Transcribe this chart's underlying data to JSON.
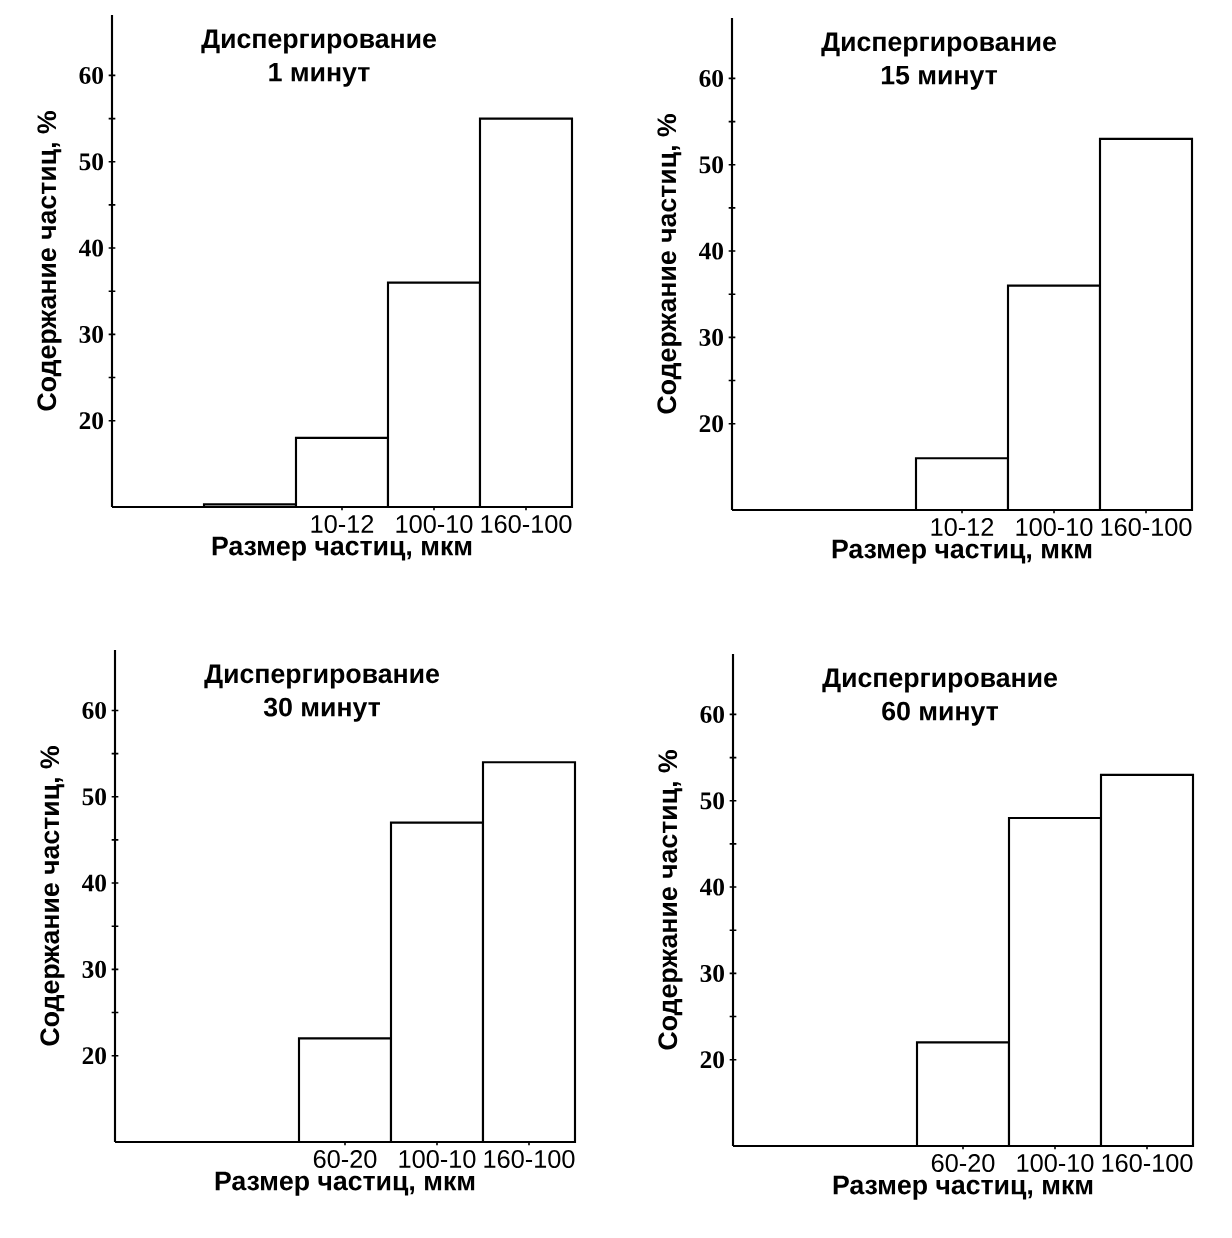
{
  "chart_data": [
    {
      "type": "bar",
      "title": "Диспергирование",
      "subtitle": "1 минут",
      "xlabel": "Размер частиц, мкм",
      "ylabel": "Содержание частиц, %",
      "categories": [
        null,
        null,
        "10-12",
        "100-10",
        "160-100"
      ],
      "values": [
        null,
        10.3,
        18,
        36,
        55
      ],
      "color": "#000000",
      "ylim": [
        10,
        67
      ],
      "yticks": [
        20,
        30,
        40,
        50,
        60
      ],
      "grid": false
    },
    {
      "type": "bar",
      "title": "Диспергирование",
      "subtitle": "15 минут",
      "xlabel": "Размер частиц, мкм",
      "ylabel": "Содержание частиц, %",
      "categories": [
        null,
        null,
        "10-12",
        "100-10",
        "160-100"
      ],
      "values": [
        null,
        null,
        16,
        36,
        53
      ],
      "color": "#000000",
      "ylim": [
        10,
        67
      ],
      "yticks": [
        20,
        30,
        40,
        50,
        60
      ],
      "grid": false
    },
    {
      "type": "bar",
      "title": "Диспергирование",
      "subtitle": "30 минут",
      "xlabel": "Размер частиц, мкм",
      "ylabel": "Содержание частиц, %",
      "categories": [
        null,
        null,
        "60-20",
        "100-10",
        "160-100"
      ],
      "values": [
        null,
        null,
        22,
        47,
        54
      ],
      "color": "#000000",
      "ylim": [
        10,
        67
      ],
      "yticks": [
        20,
        30,
        40,
        50,
        60
      ],
      "grid": false
    },
    {
      "type": "bar",
      "title": "Диспергирование",
      "subtitle": "60 минут",
      "xlabel": "Размер частиц, мкм",
      "ylabel": "Содержание частиц, %",
      "categories": [
        null,
        null,
        "60-20",
        "100-10",
        "160-100"
      ],
      "values": [
        null,
        null,
        22,
        48,
        53
      ],
      "color": "#000000",
      "ylim": [
        10,
        67
      ],
      "yticks": [
        20,
        30,
        40,
        50,
        60
      ],
      "grid": false
    }
  ]
}
